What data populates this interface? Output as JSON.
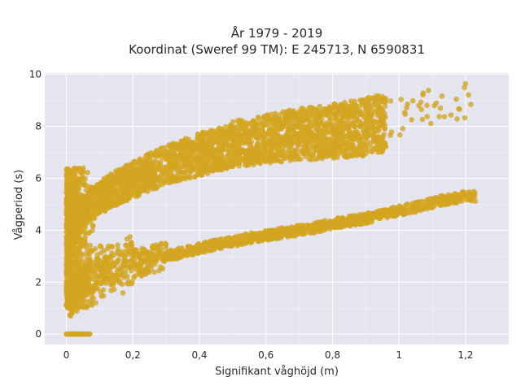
{
  "chart_data": {
    "type": "scatter",
    "title": "År 1979 - 2019",
    "subtitle": "Koordinat (Sweref 99 TM): E 245713, N 6590831",
    "xlabel": "Signifikant våghöjd (m)",
    "ylabel": "Vågperiod (s)",
    "xlim": [
      -0.065,
      1.33
    ],
    "ylim": [
      -0.4,
      10.05
    ],
    "x_ticks": [
      0,
      0.2,
      0.4,
      0.6,
      0.8,
      1,
      1.2
    ],
    "x_tick_labels": [
      "0",
      "0,2",
      "0,4",
      "0,6",
      "0,8",
      "1",
      "1,2"
    ],
    "y_ticks": [
      0,
      2,
      4,
      6,
      8,
      10
    ],
    "y_tick_labels": [
      "0",
      "2",
      "4",
      "6",
      "8",
      "10"
    ],
    "grid": true,
    "background_color": "#e5e5ef",
    "point_color": "#d4a520",
    "series": [
      {
        "description": "swell branch (lower band)",
        "x": [
          0.02,
          0.05,
          0.08,
          0.1,
          0.12,
          0.15,
          0.2,
          0.25,
          0.3,
          0.35,
          0.4,
          0.45,
          0.5,
          0.55,
          0.6,
          0.65,
          0.7,
          0.75,
          0.8,
          0.85,
          0.9,
          0.95,
          1.0,
          1.05,
          1.1,
          1.15,
          1.2,
          1.26
        ],
        "y": [
          1.5,
          1.8,
          2.0,
          2.2,
          2.35,
          2.5,
          2.7,
          2.85,
          3.0,
          3.15,
          3.3,
          3.45,
          3.55,
          3.7,
          3.8,
          3.9,
          4.0,
          4.1,
          4.25,
          4.35,
          4.45,
          4.6,
          4.75,
          4.9,
          5.05,
          5.2,
          5.3,
          5.3
        ]
      },
      {
        "description": "wind sea branch (upper band) ridge",
        "x": [
          0.01,
          0.05,
          0.1,
          0.15,
          0.2,
          0.25,
          0.3,
          0.35,
          0.4,
          0.45,
          0.5,
          0.55,
          0.6,
          0.65,
          0.7,
          0.75,
          0.8,
          0.85,
          0.9,
          0.95,
          1.0,
          1.05,
          1.1,
          1.2
        ],
        "y": [
          4.0,
          4.8,
          5.3,
          5.7,
          6.0,
          6.3,
          6.6,
          6.8,
          7.0,
          7.2,
          7.4,
          7.5,
          7.6,
          7.7,
          7.8,
          7.85,
          7.9,
          8.0,
          8.1,
          8.2,
          8.4,
          8.6,
          8.8,
          8.9
        ]
      },
      {
        "description": "calm records at zero period",
        "x": [
          0,
          0.01,
          0.02,
          0.03,
          0.04,
          0.05,
          0.06,
          0.07
        ],
        "y": [
          0,
          0,
          0,
          0,
          0,
          0,
          0,
          0
        ]
      }
    ]
  }
}
